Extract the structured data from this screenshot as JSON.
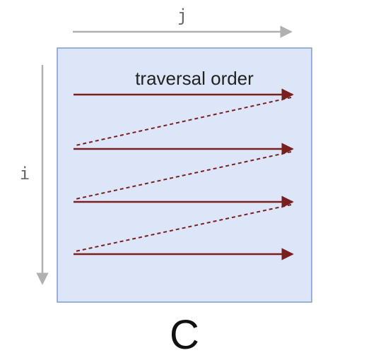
{
  "diagram": {
    "axis_j_label": "j",
    "axis_i_label": "i",
    "traversal_label": "traversal order",
    "matrix_label": "C",
    "row_count": 4
  },
  "colors": {
    "matrix_fill": "#dce6f8",
    "matrix_border": "#7d9ccc",
    "axis_arrow": "#b0b0b0",
    "traversal_arrow": "#7a1f1f"
  }
}
